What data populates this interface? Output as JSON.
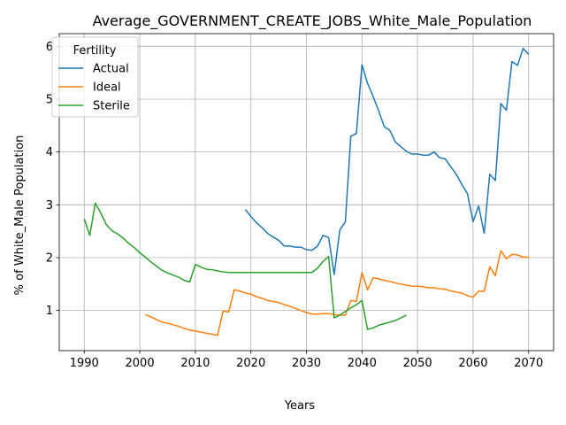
{
  "chart_data": {
    "type": "line",
    "title": "Average_GOVERNMENT_CREATE_JOBS_White_Male_Population",
    "xlabel": "Years",
    "ylabel": "% of White_Male Population",
    "xlim": [
      1985.5,
      2074.5
    ],
    "ylim": [
      0.24,
      6.24
    ],
    "xticks": [
      1990,
      2000,
      2010,
      2020,
      2030,
      2040,
      2050,
      2060,
      2070
    ],
    "yticks": [
      1,
      2,
      3,
      4,
      5,
      6
    ],
    "grid": true,
    "legend": {
      "title": "Fertility",
      "placement": "top-left"
    },
    "series": [
      {
        "name": "Actual",
        "color": "#1f77b4",
        "x": [
          2019,
          2020,
          2021,
          2022,
          2023,
          2024,
          2025,
          2026,
          2027,
          2028,
          2029,
          2030,
          2031,
          2032,
          2033,
          2034,
          2035,
          2036,
          2037,
          2038,
          2039,
          2040,
          2041,
          2042,
          2043,
          2044,
          2045,
          2046,
          2047,
          2048,
          2049,
          2050,
          2051,
          2052,
          2053,
          2054,
          2055,
          2056,
          2057,
          2058,
          2059,
          2060,
          2061,
          2062,
          2063,
          2064,
          2065,
          2066,
          2067,
          2068,
          2069,
          2070
        ],
        "values": [
          2.91,
          2.78,
          2.66,
          2.57,
          2.46,
          2.39,
          2.33,
          2.22,
          2.22,
          2.2,
          2.2,
          2.15,
          2.14,
          2.22,
          2.42,
          2.38,
          1.68,
          2.52,
          2.68,
          4.3,
          4.35,
          5.65,
          5.3,
          5.05,
          4.78,
          4.48,
          4.41,
          4.19,
          4.1,
          4.01,
          3.96,
          3.96,
          3.94,
          3.94,
          4.0,
          3.89,
          3.87,
          3.72,
          3.57,
          3.38,
          3.21,
          2.68,
          2.98,
          2.46,
          3.58,
          3.46,
          4.92,
          4.79,
          5.71,
          5.64,
          5.96,
          5.85
        ]
      },
      {
        "name": "Ideal",
        "color": "#ff7f0e",
        "x": [
          2001,
          2002,
          2003,
          2004,
          2005,
          2006,
          2007,
          2008,
          2009,
          2010,
          2011,
          2012,
          2013,
          2014,
          2015,
          2016,
          2017,
          2018,
          2019,
          2020,
          2021,
          2022,
          2023,
          2024,
          2025,
          2026,
          2027,
          2028,
          2029,
          2030,
          2031,
          2032,
          2033,
          2034,
          2035,
          2036,
          2037,
          2038,
          2039,
          2040,
          2041,
          2042,
          2043,
          2044,
          2045,
          2046,
          2047,
          2048,
          2049,
          2050,
          2051,
          2052,
          2053,
          2054,
          2055,
          2056,
          2057,
          2058,
          2059,
          2060,
          2061,
          2062,
          2063,
          2064,
          2065,
          2066,
          2067,
          2068,
          2069,
          2070
        ],
        "values": [
          0.92,
          0.88,
          0.83,
          0.78,
          0.76,
          0.73,
          0.7,
          0.66,
          0.63,
          0.61,
          0.59,
          0.57,
          0.55,
          0.53,
          0.99,
          0.97,
          1.39,
          1.37,
          1.33,
          1.31,
          1.26,
          1.23,
          1.19,
          1.17,
          1.15,
          1.11,
          1.08,
          1.04,
          1.0,
          0.96,
          0.93,
          0.93,
          0.94,
          0.94,
          0.92,
          0.91,
          0.91,
          1.19,
          1.17,
          1.72,
          1.39,
          1.62,
          1.6,
          1.57,
          1.55,
          1.52,
          1.5,
          1.48,
          1.46,
          1.46,
          1.45,
          1.43,
          1.43,
          1.41,
          1.4,
          1.37,
          1.35,
          1.33,
          1.28,
          1.25,
          1.37,
          1.36,
          1.83,
          1.66,
          2.13,
          1.98,
          2.06,
          2.05,
          2.01,
          2.01
        ]
      },
      {
        "name": "Sterile",
        "color": "#2ca02c",
        "x": [
          1990,
          1991,
          1992,
          1993,
          1994,
          1995,
          1996,
          1997,
          1998,
          1999,
          2000,
          2001,
          2002,
          2003,
          2004,
          2005,
          2006,
          2007,
          2008,
          2009,
          2010,
          2011,
          2012,
          2013,
          2014,
          2015,
          2016,
          2017,
          2018,
          2019,
          2020,
          2021,
          2022,
          2023,
          2024,
          2025,
          2026,
          2027,
          2028,
          2029,
          2030,
          2031,
          2032,
          2033,
          2034,
          2035,
          2036,
          2037,
          2038,
          2039,
          2040,
          2041,
          2042,
          2043,
          2044,
          2045,
          2046,
          2047,
          2048
        ],
        "values": [
          2.73,
          2.42,
          3.03,
          2.84,
          2.62,
          2.51,
          2.45,
          2.37,
          2.27,
          2.19,
          2.09,
          2.01,
          1.92,
          1.84,
          1.76,
          1.71,
          1.67,
          1.63,
          1.57,
          1.54,
          1.87,
          1.82,
          1.78,
          1.77,
          1.75,
          1.73,
          1.72,
          1.72,
          1.72,
          1.72,
          1.72,
          1.72,
          1.72,
          1.72,
          1.72,
          1.72,
          1.72,
          1.72,
          1.72,
          1.72,
          1.72,
          1.72,
          1.8,
          1.93,
          2.02,
          0.86,
          0.91,
          0.98,
          1.05,
          1.11,
          1.19,
          0.64,
          0.67,
          0.72,
          0.75,
          0.78,
          0.81,
          0.86,
          0.91
        ]
      }
    ]
  }
}
